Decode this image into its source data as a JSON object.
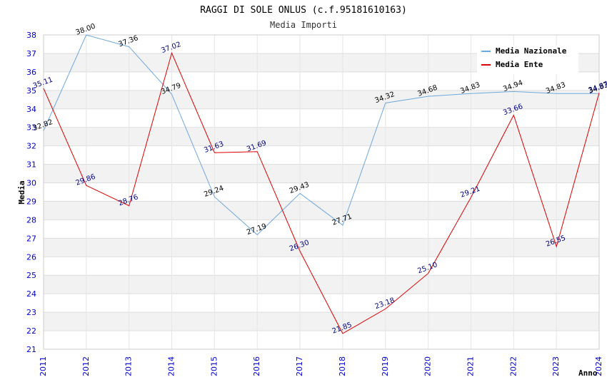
{
  "chart_data": {
    "type": "line",
    "title": "RAGGI DI SOLE ONLUS (c.f.95181610163)",
    "subtitle": "Media Importi",
    "xlabel": "Anno",
    "ylabel": "Media",
    "ylim": [
      21,
      38
    ],
    "y_ticks": [
      "21",
      "22",
      "23",
      "24",
      "25",
      "26",
      "27",
      "28",
      "29",
      "30",
      "31",
      "32",
      "33",
      "34",
      "35",
      "36",
      "37",
      "38"
    ],
    "categories": [
      "2011",
      "2012",
      "2013",
      "2014",
      "2015",
      "2016",
      "2017",
      "2018",
      "2019",
      "2020",
      "2021",
      "2022",
      "2023",
      "2024"
    ],
    "legend_position": "top-right",
    "series": [
      {
        "name": "Media Nazionale",
        "color": "#6fa8dc",
        "label_color": "#000000",
        "values": [
          32.82,
          38.0,
          37.36,
          34.79,
          29.24,
          27.19,
          29.43,
          27.71,
          34.32,
          34.68,
          34.83,
          34.94,
          34.83,
          34.83
        ],
        "labels": [
          "32.82",
          "38.00",
          "37.36",
          "34.79",
          "29.24",
          "27.19",
          "29.43",
          "27.71",
          "34.32",
          "34.68",
          "34.83",
          "34.94",
          "34.83",
          "34.83"
        ]
      },
      {
        "name": "Media Ente",
        "color": "#dd0000",
        "label_color": "#000080",
        "values": [
          35.11,
          29.86,
          28.76,
          37.02,
          31.63,
          31.69,
          26.3,
          21.85,
          23.18,
          25.1,
          29.21,
          33.66,
          26.55,
          34.87
        ],
        "labels": [
          "35.11",
          "29.86",
          "28.76",
          "37.02",
          "31.63",
          "31.69",
          "26.30",
          "21.85",
          "23.18",
          "25.10",
          "29.21",
          "33.66",
          "26.55",
          "34.87"
        ]
      }
    ]
  }
}
